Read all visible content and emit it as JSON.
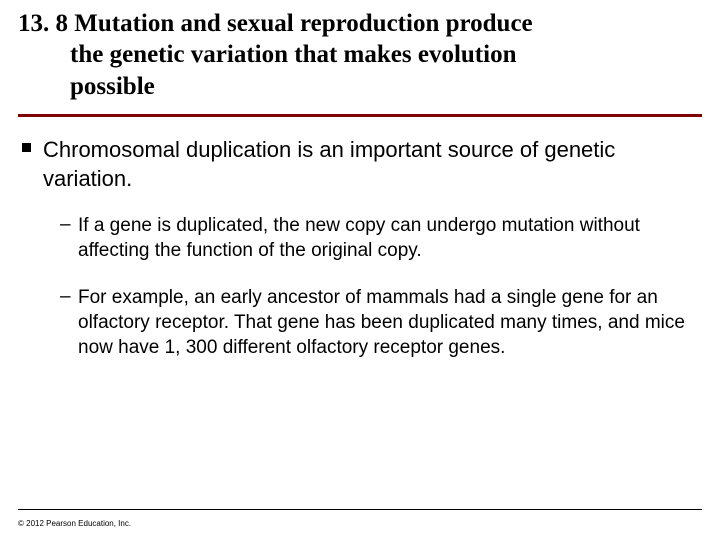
{
  "title": {
    "number": "13. 8",
    "line1": "Mutation and sexual reproduction produce",
    "line2": "the genetic variation that makes evolution",
    "line3": "possible",
    "color": "#000000",
    "fontsize": 25,
    "font_family": "Times New Roman"
  },
  "rule": {
    "color": "#800000",
    "height": 3
  },
  "main_bullet": {
    "text": "Chromosomal duplication is an important source of genetic variation.",
    "fontsize": 22,
    "bullet_color": "#000000"
  },
  "sub_bullets": [
    {
      "text": "If a gene is duplicated, the new copy can undergo mutation without affecting the function of the original copy."
    },
    {
      "text": "For example, an early ancestor of mammals had a single gene for an olfactory receptor. That gene has been duplicated many times, and mice now have 1, 300 different olfactory receptor genes."
    }
  ],
  "sub_bullet_style": {
    "fontsize": 19,
    "marker": "–"
  },
  "copyright": "© 2012 Pearson Education, Inc.",
  "background_color": "#ffffff",
  "bottom_rule_color": "#000000"
}
